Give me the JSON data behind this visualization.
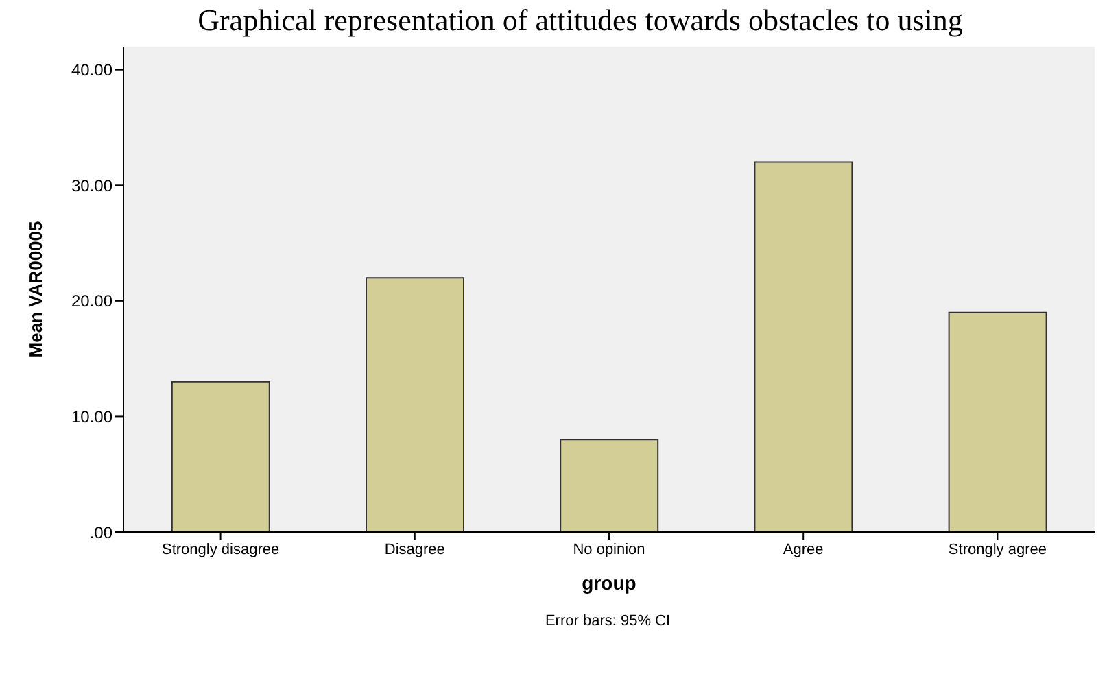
{
  "chart_data": {
    "type": "bar",
    "title": "Graphical representation of attitudes towards obstacles to using",
    "categories": [
      "Strongly disagree",
      "Disagree",
      "No opinion",
      "Agree",
      "Strongly agree"
    ],
    "values": [
      13,
      22,
      8,
      32,
      19
    ],
    "color": "#d3cd96",
    "xlabel": "group",
    "ylabel": "Mean VAR00005",
    "ylim": [
      0,
      42
    ],
    "yticks": [
      {
        "value": 0,
        "label": ".00"
      },
      {
        "value": 10,
        "label": "10.00"
      },
      {
        "value": 20,
        "label": "20.00"
      },
      {
        "value": 30,
        "label": "30.00"
      },
      {
        "value": 40,
        "label": "40.00"
      }
    ],
    "annotations": [
      "Error bars: 95% CI"
    ],
    "grid": false,
    "legend": false
  }
}
